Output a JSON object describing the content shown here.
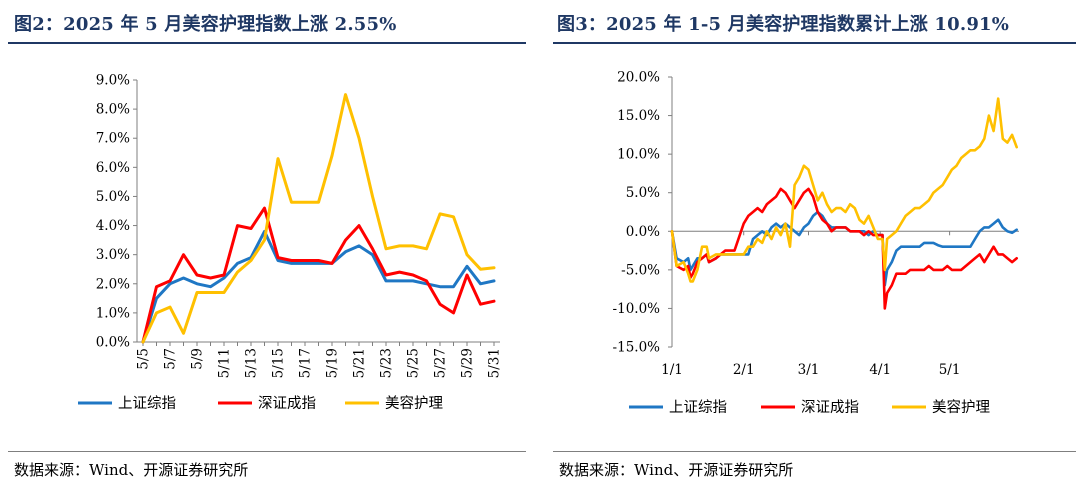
{
  "colors": {
    "title": "#1f3864",
    "blue": "#1f77c4",
    "red": "#ff0000",
    "yellow": "#ffc000"
  },
  "left": {
    "title": "图2：2025 年 5 月美容护理指数上涨 2.55%",
    "source": "数据来源：Wind、开源证券研究所"
  },
  "right": {
    "title": "图3：2025 年 1-5 月美容护理指数累计上涨 10.91%",
    "source": "数据来源：Wind、开源证券研究所"
  },
  "chart_data": [
    {
      "type": "line",
      "title": "图2：2025 年 5 月美容护理指数上涨 2.55%",
      "categories": [
        "5/5",
        "5/6",
        "5/7",
        "5/8",
        "5/9",
        "5/10",
        "5/11",
        "5/12",
        "5/13",
        "5/14",
        "5/15",
        "5/16",
        "5/17",
        "5/18",
        "5/19",
        "5/20",
        "5/21",
        "5/22",
        "5/23",
        "5/24",
        "5/25",
        "5/26",
        "5/27",
        "5/28",
        "5/29",
        "5/30",
        "5/31"
      ],
      "x_tick_labels": [
        "5/5",
        "5/7",
        "5/9",
        "5/11",
        "5/13",
        "5/15",
        "5/17",
        "5/19",
        "5/21",
        "5/23",
        "5/25",
        "5/27",
        "5/29",
        "5/31"
      ],
      "ylim": [
        0,
        9
      ],
      "y_tick_labels": [
        "0.0%",
        "1.0%",
        "2.0%",
        "3.0%",
        "4.0%",
        "5.0%",
        "6.0%",
        "7.0%",
        "8.0%",
        "9.0%"
      ],
      "series": [
        {
          "name": "上证综指",
          "color": "#1f77c4",
          "values": [
            0.0,
            1.5,
            2.0,
            2.2,
            2.0,
            1.9,
            2.2,
            2.7,
            2.9,
            3.8,
            2.8,
            2.7,
            2.7,
            2.7,
            2.7,
            3.1,
            3.3,
            3.0,
            2.1,
            2.1,
            2.1,
            2.0,
            1.9,
            1.9,
            2.6,
            2.0,
            2.1
          ]
        },
        {
          "name": "深证成指",
          "color": "#ff0000",
          "values": [
            0.0,
            1.9,
            2.1,
            3.0,
            2.3,
            2.2,
            2.3,
            4.0,
            3.9,
            4.6,
            2.9,
            2.8,
            2.8,
            2.8,
            2.7,
            3.5,
            4.0,
            3.2,
            2.3,
            2.4,
            2.3,
            2.1,
            1.3,
            1.0,
            2.3,
            1.3,
            1.4
          ]
        },
        {
          "name": "美容护理",
          "color": "#ffc000",
          "values": [
            0.0,
            1.0,
            1.2,
            0.3,
            1.7,
            1.7,
            1.7,
            2.4,
            2.8,
            3.5,
            6.3,
            4.8,
            4.8,
            4.8,
            6.4,
            8.5,
            7.0,
            5.0,
            3.2,
            3.3,
            3.3,
            3.2,
            4.4,
            4.3,
            3.0,
            2.5,
            2.55
          ]
        }
      ],
      "legend": "bottom"
    },
    {
      "type": "line",
      "title": "图3：2025 年 1-5 月美容护理指数累计上涨 10.91%",
      "x_tick_labels": [
        "1/1",
        "2/1",
        "3/1",
        "4/1",
        "5/1"
      ],
      "ylim": [
        -15,
        20
      ],
      "y_tick_labels": [
        "-15.0%",
        "-10.0%",
        "-5.0%",
        "0.0%",
        "5.0%",
        "10.0%",
        "15.0%",
        "20.0%"
      ],
      "x_domain": [
        1,
        151
      ],
      "series": [
        {
          "name": "上证综指",
          "color": "#1f77c4",
          "x": [
            1,
            3,
            6,
            8,
            9,
            10,
            12,
            14,
            16,
            17,
            20,
            22,
            24,
            28,
            32,
            34,
            36,
            38,
            40,
            42,
            44,
            46,
            48,
            50,
            52,
            54,
            56,
            58,
            60,
            62,
            64,
            66,
            68,
            70,
            72,
            74,
            76,
            78,
            80,
            82,
            84,
            86,
            88,
            90,
            92,
            93,
            94,
            96,
            98,
            100,
            102,
            104,
            106,
            108,
            110,
            112,
            114,
            116,
            118,
            120,
            122,
            124,
            126,
            128,
            130,
            132,
            134,
            136,
            138,
            140,
            142,
            144,
            146,
            148,
            150
          ],
          "y": [
            0,
            -3.5,
            -4,
            -3.5,
            -5,
            -4.5,
            -3.5,
            -3.5,
            -3,
            -4,
            -3.5,
            -3,
            -3,
            -3,
            -3,
            -3,
            -1,
            -0.5,
            0,
            -0.5,
            0.5,
            1,
            0.5,
            1,
            0.5,
            0,
            -0.5,
            0.5,
            1,
            2,
            2.5,
            2,
            1,
            0.5,
            0.5,
            0.5,
            0.5,
            0,
            0,
            0,
            0,
            -0.5,
            0,
            -0.5,
            -0.5,
            -7,
            -5,
            -4,
            -2.5,
            -2,
            -2,
            -2,
            -2,
            -2,
            -1.5,
            -1.5,
            -1.5,
            -1.8,
            -2,
            -2,
            -2,
            -2,
            -2,
            -2,
            -2,
            -1,
            0,
            0.5,
            0.5,
            1,
            1.5,
            0.5,
            0,
            -0.2,
            0.2
          ]
        },
        {
          "name": "深证成指",
          "color": "#ff0000",
          "x": [
            1,
            3,
            6,
            8,
            9,
            10,
            12,
            14,
            16,
            17,
            20,
            22,
            24,
            28,
            32,
            34,
            36,
            38,
            40,
            42,
            44,
            46,
            48,
            50,
            52,
            54,
            56,
            58,
            60,
            62,
            64,
            66,
            68,
            70,
            72,
            74,
            76,
            78,
            80,
            82,
            84,
            86,
            88,
            90,
            92,
            93,
            94,
            96,
            98,
            100,
            102,
            104,
            106,
            108,
            110,
            112,
            114,
            116,
            118,
            120,
            122,
            124,
            126,
            128,
            130,
            132,
            134,
            136,
            138,
            140,
            142,
            144,
            146,
            148,
            150
          ],
          "y": [
            0,
            -4.5,
            -5,
            -4.5,
            -6,
            -5.5,
            -4,
            -3.5,
            -3,
            -4,
            -3.5,
            -3,
            -2.5,
            -2.5,
            1,
            2,
            2.5,
            3,
            2.5,
            3.5,
            4,
            4.5,
            5.5,
            5,
            4,
            3,
            4,
            5,
            5.5,
            4.5,
            2.5,
            1.5,
            1,
            0,
            0.5,
            0.5,
            0.5,
            0,
            0,
            0,
            -0.5,
            0,
            -0.5,
            -0.5,
            -0.5,
            -10,
            -8,
            -7,
            -5.5,
            -5.5,
            -5.5,
            -5,
            -5,
            -5,
            -5,
            -4.5,
            -5,
            -5,
            -5,
            -4.5,
            -5,
            -5,
            -5,
            -4.5,
            -4,
            -3.5,
            -3,
            -4,
            -3,
            -2,
            -3,
            -3,
            -3.5,
            -4,
            -3.5
          ]
        },
        {
          "name": "美容护理",
          "color": "#ffc000",
          "x": [
            1,
            3,
            6,
            8,
            9,
            10,
            12,
            14,
            16,
            17,
            20,
            22,
            24,
            28,
            32,
            34,
            36,
            38,
            40,
            42,
            44,
            46,
            48,
            50,
            52,
            54,
            56,
            58,
            60,
            62,
            64,
            66,
            68,
            70,
            72,
            74,
            76,
            78,
            80,
            82,
            84,
            86,
            88,
            90,
            92,
            93,
            94,
            96,
            98,
            100,
            102,
            104,
            106,
            108,
            110,
            112,
            114,
            116,
            118,
            120,
            122,
            124,
            126,
            128,
            130,
            132,
            134,
            136,
            138,
            140,
            142,
            144,
            146,
            148,
            150
          ],
          "y": [
            0,
            -4.5,
            -4,
            -5.5,
            -6.5,
            -6.5,
            -5,
            -2,
            -2,
            -3.5,
            -3,
            -3,
            -3,
            -3,
            -3,
            -2,
            -2,
            -1,
            -1.5,
            0,
            -1,
            0.5,
            -0.5,
            1,
            -2,
            6,
            7,
            8.5,
            8,
            6,
            4,
            5,
            3.5,
            2.5,
            3,
            3,
            2.5,
            3.5,
            3,
            1.5,
            1,
            2,
            0.5,
            -1,
            -1,
            -5,
            -1,
            -0.5,
            0,
            1,
            2,
            2.5,
            3,
            3,
            3.5,
            4,
            5,
            5.5,
            6,
            7,
            8,
            8.5,
            9.5,
            10,
            10.5,
            10.5,
            11,
            12,
            15,
            13,
            17.2,
            12,
            11.5,
            12.5,
            10.9
          ]
        }
      ],
      "legend": "bottom"
    }
  ]
}
